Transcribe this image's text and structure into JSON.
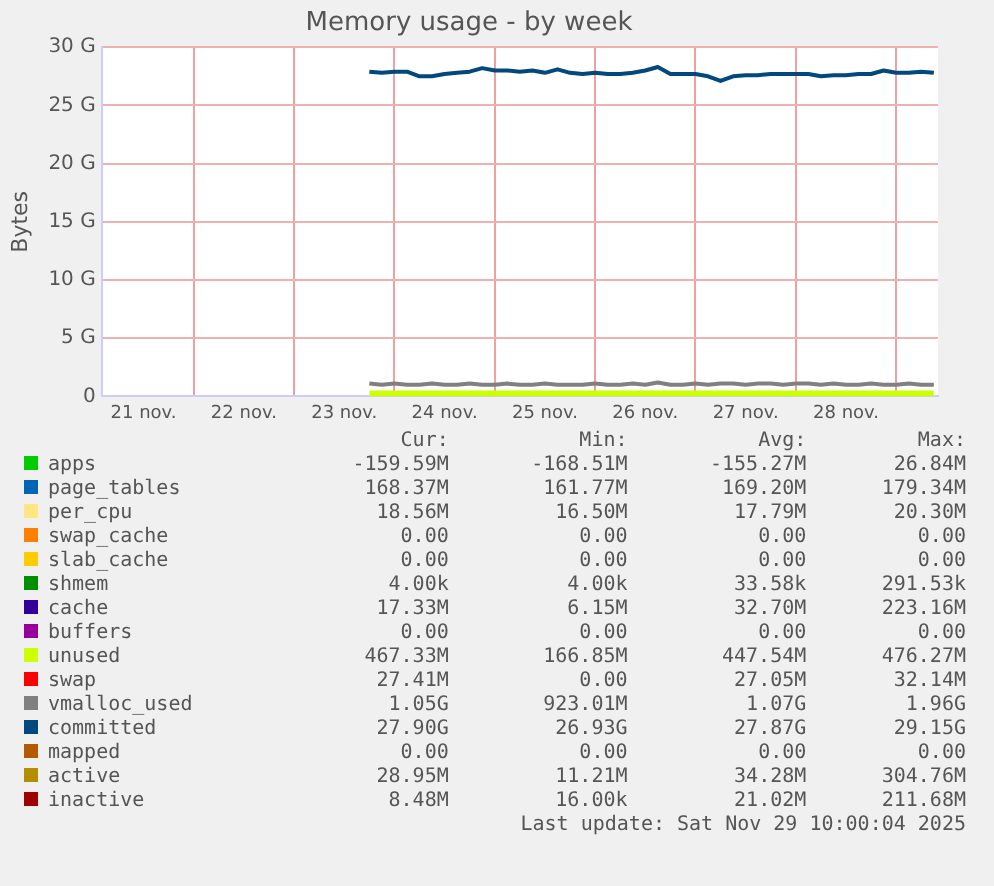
{
  "chart_data": {
    "type": "area",
    "title": "Memory usage - by week",
    "ylabel": "Bytes",
    "grid": true,
    "legend": "bottom",
    "x": [
      "2025-11-23T18:00",
      "2025-11-23T21:00",
      "2025-11-24T00:00",
      "2025-11-24T03:00",
      "2025-11-24T06:00",
      "2025-11-24T09:00",
      "2025-11-24T12:00",
      "2025-11-24T15:00",
      "2025-11-24T18:00",
      "2025-11-24T21:00",
      "2025-11-25T00:00",
      "2025-11-25T03:00",
      "2025-11-25T06:00",
      "2025-11-25T09:00",
      "2025-11-25T12:00",
      "2025-11-25T15:00",
      "2025-11-25T18:00",
      "2025-11-25T21:00",
      "2025-11-26T00:00",
      "2025-11-26T03:00",
      "2025-11-26T06:00",
      "2025-11-26T09:00",
      "2025-11-26T12:00",
      "2025-11-26T15:00",
      "2025-11-26T18:00",
      "2025-11-26T21:00",
      "2025-11-27T00:00",
      "2025-11-27T03:00",
      "2025-11-27T06:00",
      "2025-11-27T09:00",
      "2025-11-27T12:00",
      "2025-11-27T15:00",
      "2025-11-27T18:00",
      "2025-11-27T21:00",
      "2025-11-28T00:00",
      "2025-11-28T03:00",
      "2025-11-28T06:00",
      "2025-11-28T09:00",
      "2025-11-28T12:00",
      "2025-11-28T15:00",
      "2025-11-28T18:00",
      "2025-11-28T21:00",
      "2025-11-29T00:00",
      "2025-11-29T03:00",
      "2025-11-29T06:00",
      "2025-11-29T09:00"
    ],
    "xlim": [
      "2025-11-21T02:00",
      "2025-11-29T10:00"
    ],
    "xticks": [
      {
        "value": "2025-11-21T12:00",
        "label": "21 nov."
      },
      {
        "value": "2025-11-22T12:00",
        "label": "22 nov."
      },
      {
        "value": "2025-11-23T12:00",
        "label": "23 nov."
      },
      {
        "value": "2025-11-24T12:00",
        "label": "24 nov."
      },
      {
        "value": "2025-11-25T12:00",
        "label": "25 nov."
      },
      {
        "value": "2025-11-26T12:00",
        "label": "26 nov."
      },
      {
        "value": "2025-11-27T12:00",
        "label": "27 nov."
      },
      {
        "value": "2025-11-28T12:00",
        "label": "28 nov."
      },
      {
        "value": "2025-11-22T00:00",
        "label": null
      },
      {
        "value": "2025-11-23T00:00",
        "label": null
      },
      {
        "value": "2025-11-24T00:00",
        "label": null
      },
      {
        "value": "2025-11-25T00:00",
        "label": null
      },
      {
        "value": "2025-11-26T00:00",
        "label": null
      },
      {
        "value": "2025-11-27T00:00",
        "label": null
      },
      {
        "value": "2025-11-28T00:00",
        "label": null
      },
      {
        "value": "2025-11-29T00:00",
        "label": null
      }
    ],
    "ylim": [
      0,
      30
    ],
    "yticks": [
      {
        "value": 0,
        "label": "0"
      },
      {
        "value": 5,
        "label": "5 G"
      },
      {
        "value": 10,
        "label": "10 G"
      },
      {
        "value": 15,
        "label": "15 G"
      },
      {
        "value": 20,
        "label": "20 G"
      },
      {
        "value": 25,
        "label": "25 G"
      },
      {
        "value": 30,
        "label": "30 G"
      }
    ],
    "series": [
      {
        "name": "apps",
        "color": "#00cc00",
        "values": [
          null,
          null,
          null,
          null,
          null,
          null,
          null,
          null,
          null,
          null,
          null,
          null,
          null,
          null,
          null,
          null,
          null,
          null,
          null,
          null,
          null,
          null,
          null,
          null,
          null,
          null,
          null,
          null,
          null,
          null,
          null,
          null,
          null,
          null,
          null,
          null,
          null,
          null,
          null,
          null,
          null,
          null,
          null,
          null,
          null,
          null
        ]
      },
      {
        "name": "page_tables",
        "color": "#0066b3",
        "values": [
          null,
          null,
          null,
          null,
          null,
          null,
          null,
          null,
          null,
          null,
          null,
          null,
          null,
          null,
          null,
          null,
          null,
          null,
          null,
          null,
          null,
          null,
          null,
          null,
          null,
          null,
          null,
          null,
          null,
          null,
          null,
          null,
          null,
          null,
          null,
          null,
          null,
          null,
          null,
          null,
          null,
          null,
          null,
          null,
          null,
          null
        ]
      },
      {
        "name": "per_cpu",
        "color": "#ffe680",
        "values": [
          null,
          null,
          null,
          null,
          null,
          null,
          null,
          null,
          null,
          null,
          null,
          null,
          null,
          null,
          null,
          null,
          null,
          null,
          null,
          null,
          null,
          null,
          null,
          null,
          null,
          null,
          null,
          null,
          null,
          null,
          null,
          null,
          null,
          null,
          null,
          null,
          null,
          null,
          null,
          null,
          null,
          null,
          null,
          null,
          null,
          null
        ]
      },
      {
        "name": "swap_cache",
        "color": "#ff8000",
        "values": [
          null,
          null,
          null,
          null,
          null,
          null,
          null,
          null,
          null,
          null,
          null,
          null,
          null,
          null,
          null,
          null,
          null,
          null,
          null,
          null,
          null,
          null,
          null,
          null,
          null,
          null,
          null,
          null,
          null,
          null,
          null,
          null,
          null,
          null,
          null,
          null,
          null,
          null,
          null,
          null,
          null,
          null,
          null,
          null,
          null,
          null
        ]
      },
      {
        "name": "slab_cache",
        "color": "#ffcc00",
        "values": [
          null,
          null,
          null,
          null,
          null,
          null,
          null,
          null,
          null,
          null,
          null,
          null,
          null,
          null,
          null,
          null,
          null,
          null,
          null,
          null,
          null,
          null,
          null,
          null,
          null,
          null,
          null,
          null,
          null,
          null,
          null,
          null,
          null,
          null,
          null,
          null,
          null,
          null,
          null,
          null,
          null,
          null,
          null,
          null,
          null,
          null
        ]
      },
      {
        "name": "shmem",
        "color": "#008f00",
        "values": [
          null,
          null,
          null,
          null,
          null,
          null,
          null,
          null,
          null,
          null,
          null,
          null,
          null,
          null,
          null,
          null,
          null,
          null,
          null,
          null,
          null,
          null,
          null,
          null,
          null,
          null,
          null,
          null,
          null,
          null,
          null,
          null,
          null,
          null,
          null,
          null,
          null,
          null,
          null,
          null,
          null,
          null,
          null,
          null,
          null,
          null
        ]
      },
      {
        "name": "cache",
        "color": "#330099",
        "values": [
          null,
          null,
          null,
          null,
          null,
          null,
          null,
          null,
          null,
          null,
          null,
          null,
          null,
          null,
          null,
          null,
          null,
          null,
          null,
          null,
          null,
          null,
          null,
          null,
          null,
          null,
          null,
          null,
          null,
          null,
          null,
          null,
          null,
          null,
          null,
          null,
          null,
          null,
          null,
          null,
          null,
          null,
          null,
          null,
          null,
          null
        ]
      },
      {
        "name": "buffers",
        "color": "#990099",
        "values": [
          null,
          null,
          null,
          null,
          null,
          null,
          null,
          null,
          null,
          null,
          null,
          null,
          null,
          null,
          null,
          null,
          null,
          null,
          null,
          null,
          null,
          null,
          null,
          null,
          null,
          null,
          null,
          null,
          null,
          null,
          null,
          null,
          null,
          null,
          null,
          null,
          null,
          null,
          null,
          null,
          null,
          null,
          null,
          null,
          null,
          null
        ]
      },
      {
        "name": "unused",
        "color": "#ccff00",
        "x": [
          "2025-11-23T18:00",
          "2025-11-29T09:00"
        ],
        "values": [
          0.5,
          0.5
        ]
      },
      {
        "name": "swap",
        "color": "#ff0000",
        "values": [
          null,
          null,
          null,
          null,
          null,
          null,
          null,
          null,
          null,
          null,
          null,
          null,
          null,
          null,
          null,
          null,
          null,
          null,
          null,
          null,
          null,
          null,
          null,
          null,
          null,
          null,
          null,
          null,
          null,
          null,
          null,
          null,
          null,
          null,
          null,
          null,
          null,
          null,
          null,
          null,
          null,
          null,
          null,
          null,
          null,
          null
        ]
      },
      {
        "name": "vmalloc_used",
        "color": "#808080",
        "type": "line",
        "values": [
          1.1,
          1,
          1.1,
          1,
          1,
          1.1,
          1,
          1,
          1.1,
          1,
          1,
          1.1,
          1,
          1,
          1.1,
          1,
          1,
          1,
          1.1,
          1,
          1,
          1.1,
          1,
          1.2,
          1,
          1,
          1.1,
          1,
          1.1,
          1.1,
          1,
          1.1,
          1.1,
          1,
          1.1,
          1.1,
          1,
          1.1,
          1,
          1,
          1.1,
          1,
          1,
          1.1,
          1,
          1
        ]
      },
      {
        "name": "committed",
        "color": "#00487d",
        "type": "line",
        "values": [
          27.9,
          27.8,
          27.9,
          27.9,
          27.5,
          27.5,
          27.7,
          27.8,
          27.9,
          28.2,
          28.0,
          28.0,
          27.9,
          28.0,
          27.8,
          28.1,
          27.8,
          27.7,
          27.8,
          27.7,
          27.7,
          27.8,
          28.0,
          28.3,
          27.7,
          27.7,
          27.7,
          27.5,
          27.1,
          27.5,
          27.6,
          27.6,
          27.7,
          27.7,
          27.7,
          27.7,
          27.5,
          27.6,
          27.6,
          27.7,
          27.7,
          28.0,
          27.8,
          27.8,
          27.9,
          27.8
        ]
      },
      {
        "name": "mapped",
        "color": "#b35a00",
        "type": "line",
        "values": [
          null,
          null,
          null,
          null,
          null,
          null,
          null,
          null,
          null,
          null,
          null,
          null,
          null,
          null,
          null,
          null,
          null,
          null,
          null,
          null,
          null,
          null,
          null,
          null,
          null,
          null,
          null,
          null,
          null,
          null,
          null,
          null,
          null,
          null,
          null,
          null,
          null,
          null,
          null,
          null,
          null,
          null,
          null,
          null,
          null,
          null
        ]
      },
      {
        "name": "active",
        "color": "#b38f00",
        "type": "line",
        "values": [
          null,
          null,
          null,
          null,
          null,
          null,
          null,
          null,
          null,
          null,
          null,
          null,
          null,
          null,
          null,
          null,
          null,
          null,
          null,
          null,
          null,
          null,
          null,
          null,
          null,
          null,
          null,
          null,
          null,
          null,
          null,
          null,
          null,
          null,
          null,
          null,
          null,
          null,
          null,
          null,
          null,
          null,
          null,
          null,
          null,
          null
        ]
      },
      {
        "name": "inactive",
        "color": "#a00000",
        "type": "line",
        "values": [
          null,
          null,
          null,
          null,
          null,
          null,
          null,
          null,
          null,
          null,
          null,
          null,
          null,
          null,
          null,
          null,
          null,
          null,
          null,
          null,
          null,
          null,
          null,
          null,
          null,
          null,
          null,
          null,
          null,
          null,
          null,
          null,
          null,
          null,
          null,
          null,
          null,
          null,
          null,
          null,
          null,
          null,
          null,
          null,
          null,
          null
        ]
      }
    ],
    "annotations": [
      "Cur:",
      "Min:",
      "Avg:",
      "Max:",
      "-159.59M",
      "-168.51M",
      "-155.27M",
      "26.84M",
      "168.37M",
      "161.77M",
      "169.20M",
      "179.34M",
      "18.56M",
      "16.50M",
      "17.79M",
      "20.30M",
      "0.00",
      "0.00",
      "0.00",
      "0.00",
      "0.00",
      "0.00",
      "0.00",
      "0.00",
      "4.00k",
      "4.00k",
      "33.58k",
      "291.53k",
      "17.33M",
      "6.15M",
      "32.70M",
      "223.16M",
      "0.00",
      "0.00",
      "0.00",
      "0.00",
      "467.33M",
      "166.85M",
      "447.54M",
      "476.27M",
      "27.41M",
      "0.00",
      "27.05M",
      "32.14M",
      "1.05G",
      "923.01M",
      "1.07G",
      "1.96G",
      "27.90G",
      "26.93G",
      "27.87G",
      "29.15G",
      "0.00",
      "0.00",
      "0.00",
      "0.00",
      "28.95M",
      "11.21M",
      "34.28M",
      "304.76M",
      "8.48M",
      "16.00k",
      "21.02M",
      "211.68M",
      "Last update: Sat Nov 29 10:00:04 2025"
    ]
  }
}
